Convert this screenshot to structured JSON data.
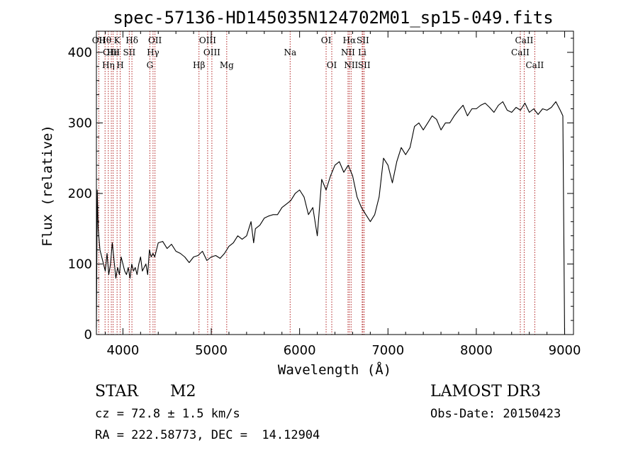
{
  "chart_data": {
    "type": "line",
    "title": "spec-57136-HD145035N124702M01_sp15-049.fits",
    "xlabel": "Wavelength (Å)",
    "ylabel": "Flux (relative)",
    "xlim": [
      3700,
      9100
    ],
    "ylim": [
      0,
      430
    ],
    "x_ticks": [
      4000,
      5000,
      6000,
      7000,
      8000,
      9000
    ],
    "y_ticks": [
      0,
      100,
      200,
      300,
      400
    ],
    "grid": false,
    "series": [
      {
        "x": [
          3700,
          3710,
          3720,
          3740,
          3760,
          3780,
          3800,
          3820,
          3840,
          3860,
          3880,
          3900,
          3920,
          3940,
          3960,
          3980,
          4000,
          4020,
          4040,
          4060,
          4080,
          4100,
          4120,
          4140,
          4160,
          4180,
          4200,
          4220,
          4240,
          4260,
          4280,
          4300,
          4320,
          4340,
          4360,
          4380,
          4400,
          4450,
          4500,
          4550,
          4600,
          4650,
          4700,
          4750,
          4800,
          4850,
          4900,
          4950,
          5000,
          5050,
          5100,
          5150,
          5200,
          5250,
          5300,
          5350,
          5400,
          5450,
          5480,
          5500,
          5550,
          5600,
          5650,
          5700,
          5750,
          5800,
          5850,
          5900,
          5950,
          6000,
          6050,
          6100,
          6150,
          6200,
          6250,
          6300,
          6350,
          6400,
          6450,
          6500,
          6550,
          6600,
          6650,
          6700,
          6750,
          6800,
          6850,
          6900,
          6950,
          7000,
          7050,
          7100,
          7150,
          7200,
          7250,
          7300,
          7350,
          7400,
          7450,
          7500,
          7550,
          7600,
          7650,
          7700,
          7750,
          7800,
          7850,
          7900,
          7950,
          8000,
          8050,
          8100,
          8150,
          8200,
          8250,
          8300,
          8350,
          8400,
          8450,
          8500,
          8550,
          8600,
          8650,
          8700,
          8750,
          8800,
          8850,
          8900,
          8950,
          8980,
          9000
        ],
        "y": [
          10,
          205,
          150,
          120,
          110,
          100,
          90,
          115,
          85,
          100,
          130,
          105,
          80,
          95,
          85,
          110,
          100,
          90,
          85,
          95,
          80,
          100,
          90,
          95,
          85,
          100,
          110,
          90,
          95,
          100,
          85,
          120,
          110,
          115,
          110,
          120,
          130,
          132,
          122,
          128,
          118,
          115,
          110,
          102,
          110,
          112,
          118,
          105,
          110,
          112,
          108,
          115,
          125,
          130,
          140,
          135,
          140,
          160,
          130,
          150,
          155,
          165,
          168,
          170,
          170,
          180,
          185,
          190,
          200,
          205,
          195,
          170,
          180,
          140,
          220,
          205,
          225,
          240,
          245,
          230,
          240,
          225,
          195,
          180,
          170,
          160,
          170,
          195,
          250,
          240,
          215,
          245,
          265,
          255,
          265,
          295,
          300,
          290,
          300,
          310,
          305,
          290,
          300,
          300,
          310,
          318,
          325,
          310,
          320,
          320,
          325,
          328,
          322,
          315,
          325,
          330,
          318,
          315,
          322,
          318,
          328,
          315,
          320,
          312,
          320,
          318,
          322,
          330,
          318,
          310,
          0
        ]
      }
    ],
    "emission_lines": [
      {
        "label": "Hθ",
        "x": 3798
      },
      {
        "label": "K",
        "x": 3934
      },
      {
        "label": "Hδ",
        "x": 4102
      },
      {
        "label": "OII",
        "x": 4363
      },
      {
        "label": "OIII",
        "x": 4959
      },
      {
        "label": "OI",
        "x": 6300
      },
      {
        "label": "Hα",
        "x": 6563
      },
      {
        "label": "SII",
        "x": 6716
      },
      {
        "label": "CaII",
        "x": 8542
      },
      {
        "label": "OII",
        "x": 3727
      },
      {
        "label": "He",
        "x": 3889
      },
      {
        "label": "SII",
        "x": 4072
      },
      {
        "label": "Hγ",
        "x": 4341
      },
      {
        "label": "OIII",
        "x": 5007
      },
      {
        "label": "Na",
        "x": 5893
      },
      {
        "label": "NII",
        "x": 6548
      },
      {
        "label": "Li",
        "x": 6708
      },
      {
        "label": "CaII",
        "x": 8498
      },
      {
        "label": "OIII",
        "x": 3869
      },
      {
        "label": "Hη",
        "x": 3835
      },
      {
        "label": "H",
        "x": 3969
      },
      {
        "label": "G",
        "x": 4305
      },
      {
        "label": "Hβ",
        "x": 4861
      },
      {
        "label": "Mg",
        "x": 5175
      },
      {
        "label": "OI",
        "x": 6364
      },
      {
        "label": "NII",
        "x": 6583
      },
      {
        "label": "SII",
        "x": 6731
      },
      {
        "label": "CaII",
        "x": 8662
      }
    ]
  },
  "info": {
    "object_class": "STAR",
    "subclass": "M2",
    "survey": "LAMOST DR3",
    "redshift": "cz = 72.8 ± 1.5 km/s",
    "obs_date": "Obs-Date: 20150423",
    "coords": "RA = 222.58773, DEC =  14.12904"
  },
  "colors": {
    "spectrum": "#000000",
    "line_marker": "#b22222",
    "axes": "#000000"
  }
}
